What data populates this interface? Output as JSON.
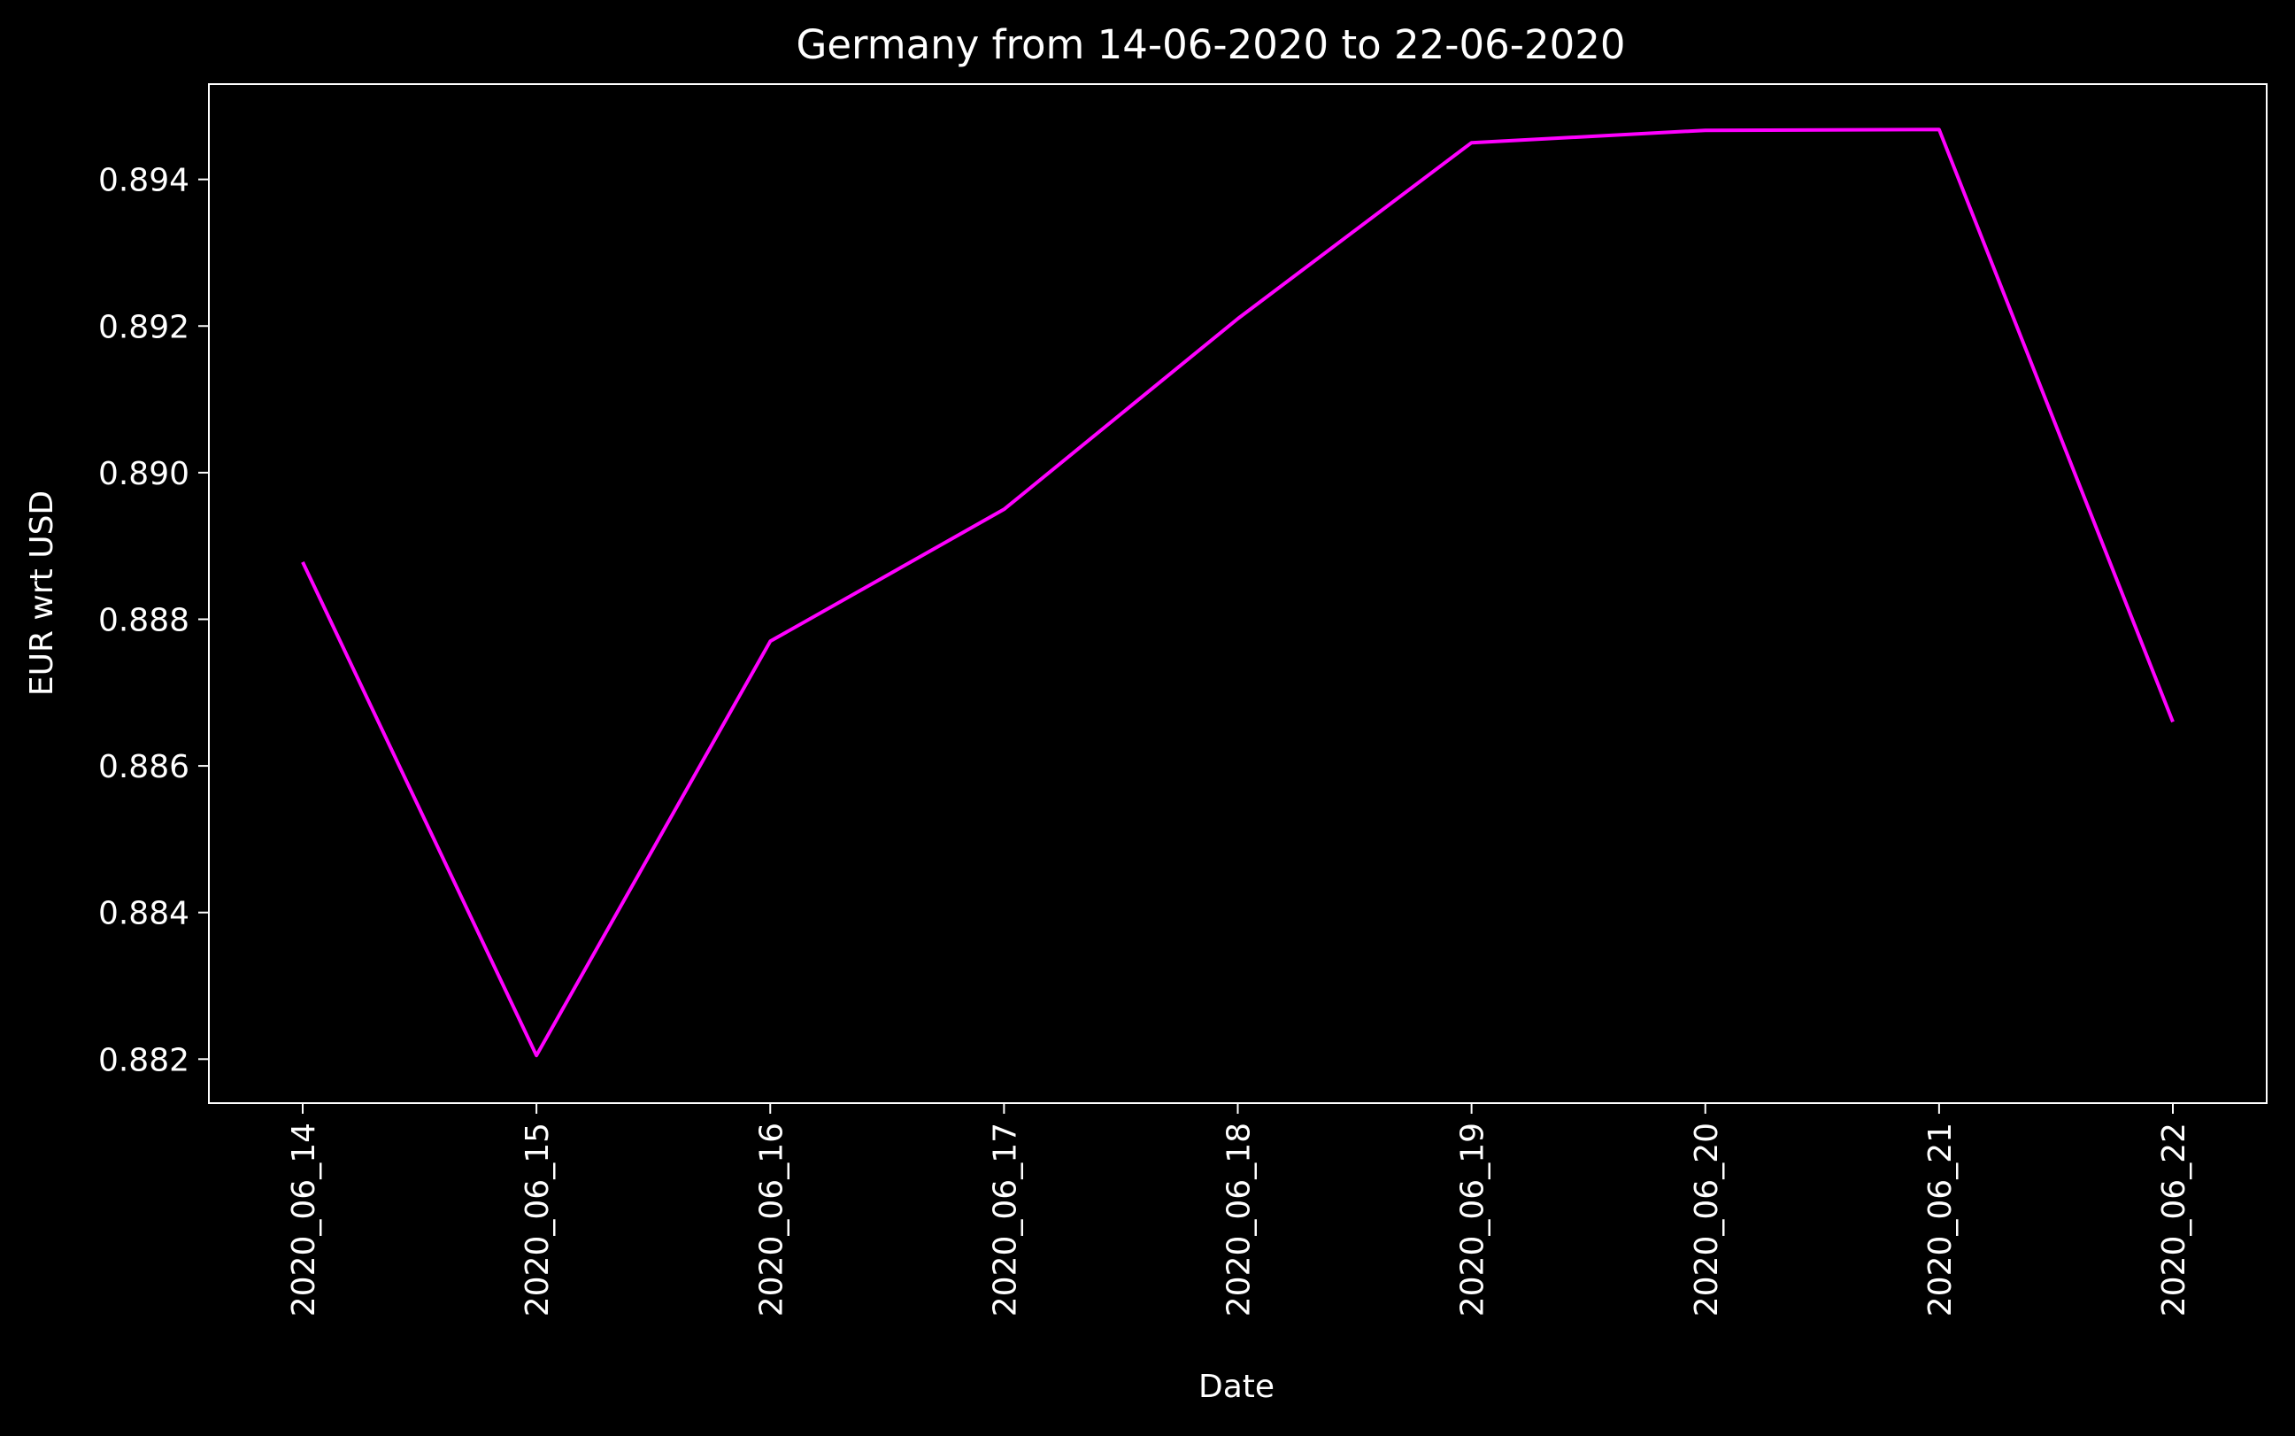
{
  "chart_data": {
    "type": "line",
    "title": "Germany from 14-06-2020 to 22-06-2020",
    "xlabel": "Date",
    "ylabel": "EUR wrt USD",
    "categories": [
      "2020_06_14",
      "2020_06_15",
      "2020_06_16",
      "2020_06_17",
      "2020_06_18",
      "2020_06_19",
      "2020_06_20",
      "2020_06_21",
      "2020_06_22"
    ],
    "series": [
      {
        "values": [
          0.88878,
          0.88205,
          0.8877,
          0.8895,
          0.8921,
          0.8945,
          0.89467,
          0.89468,
          0.8866
        ],
        "color": "#ff00ff"
      }
    ],
    "yticks": [
      "0.882",
      "0.884",
      "0.886",
      "0.888",
      "0.890",
      "0.892",
      "0.894"
    ],
    "ylim": [
      0.8814,
      0.8953
    ],
    "grid": false,
    "background_color": "#000000",
    "axis_color": "#ffffff"
  }
}
